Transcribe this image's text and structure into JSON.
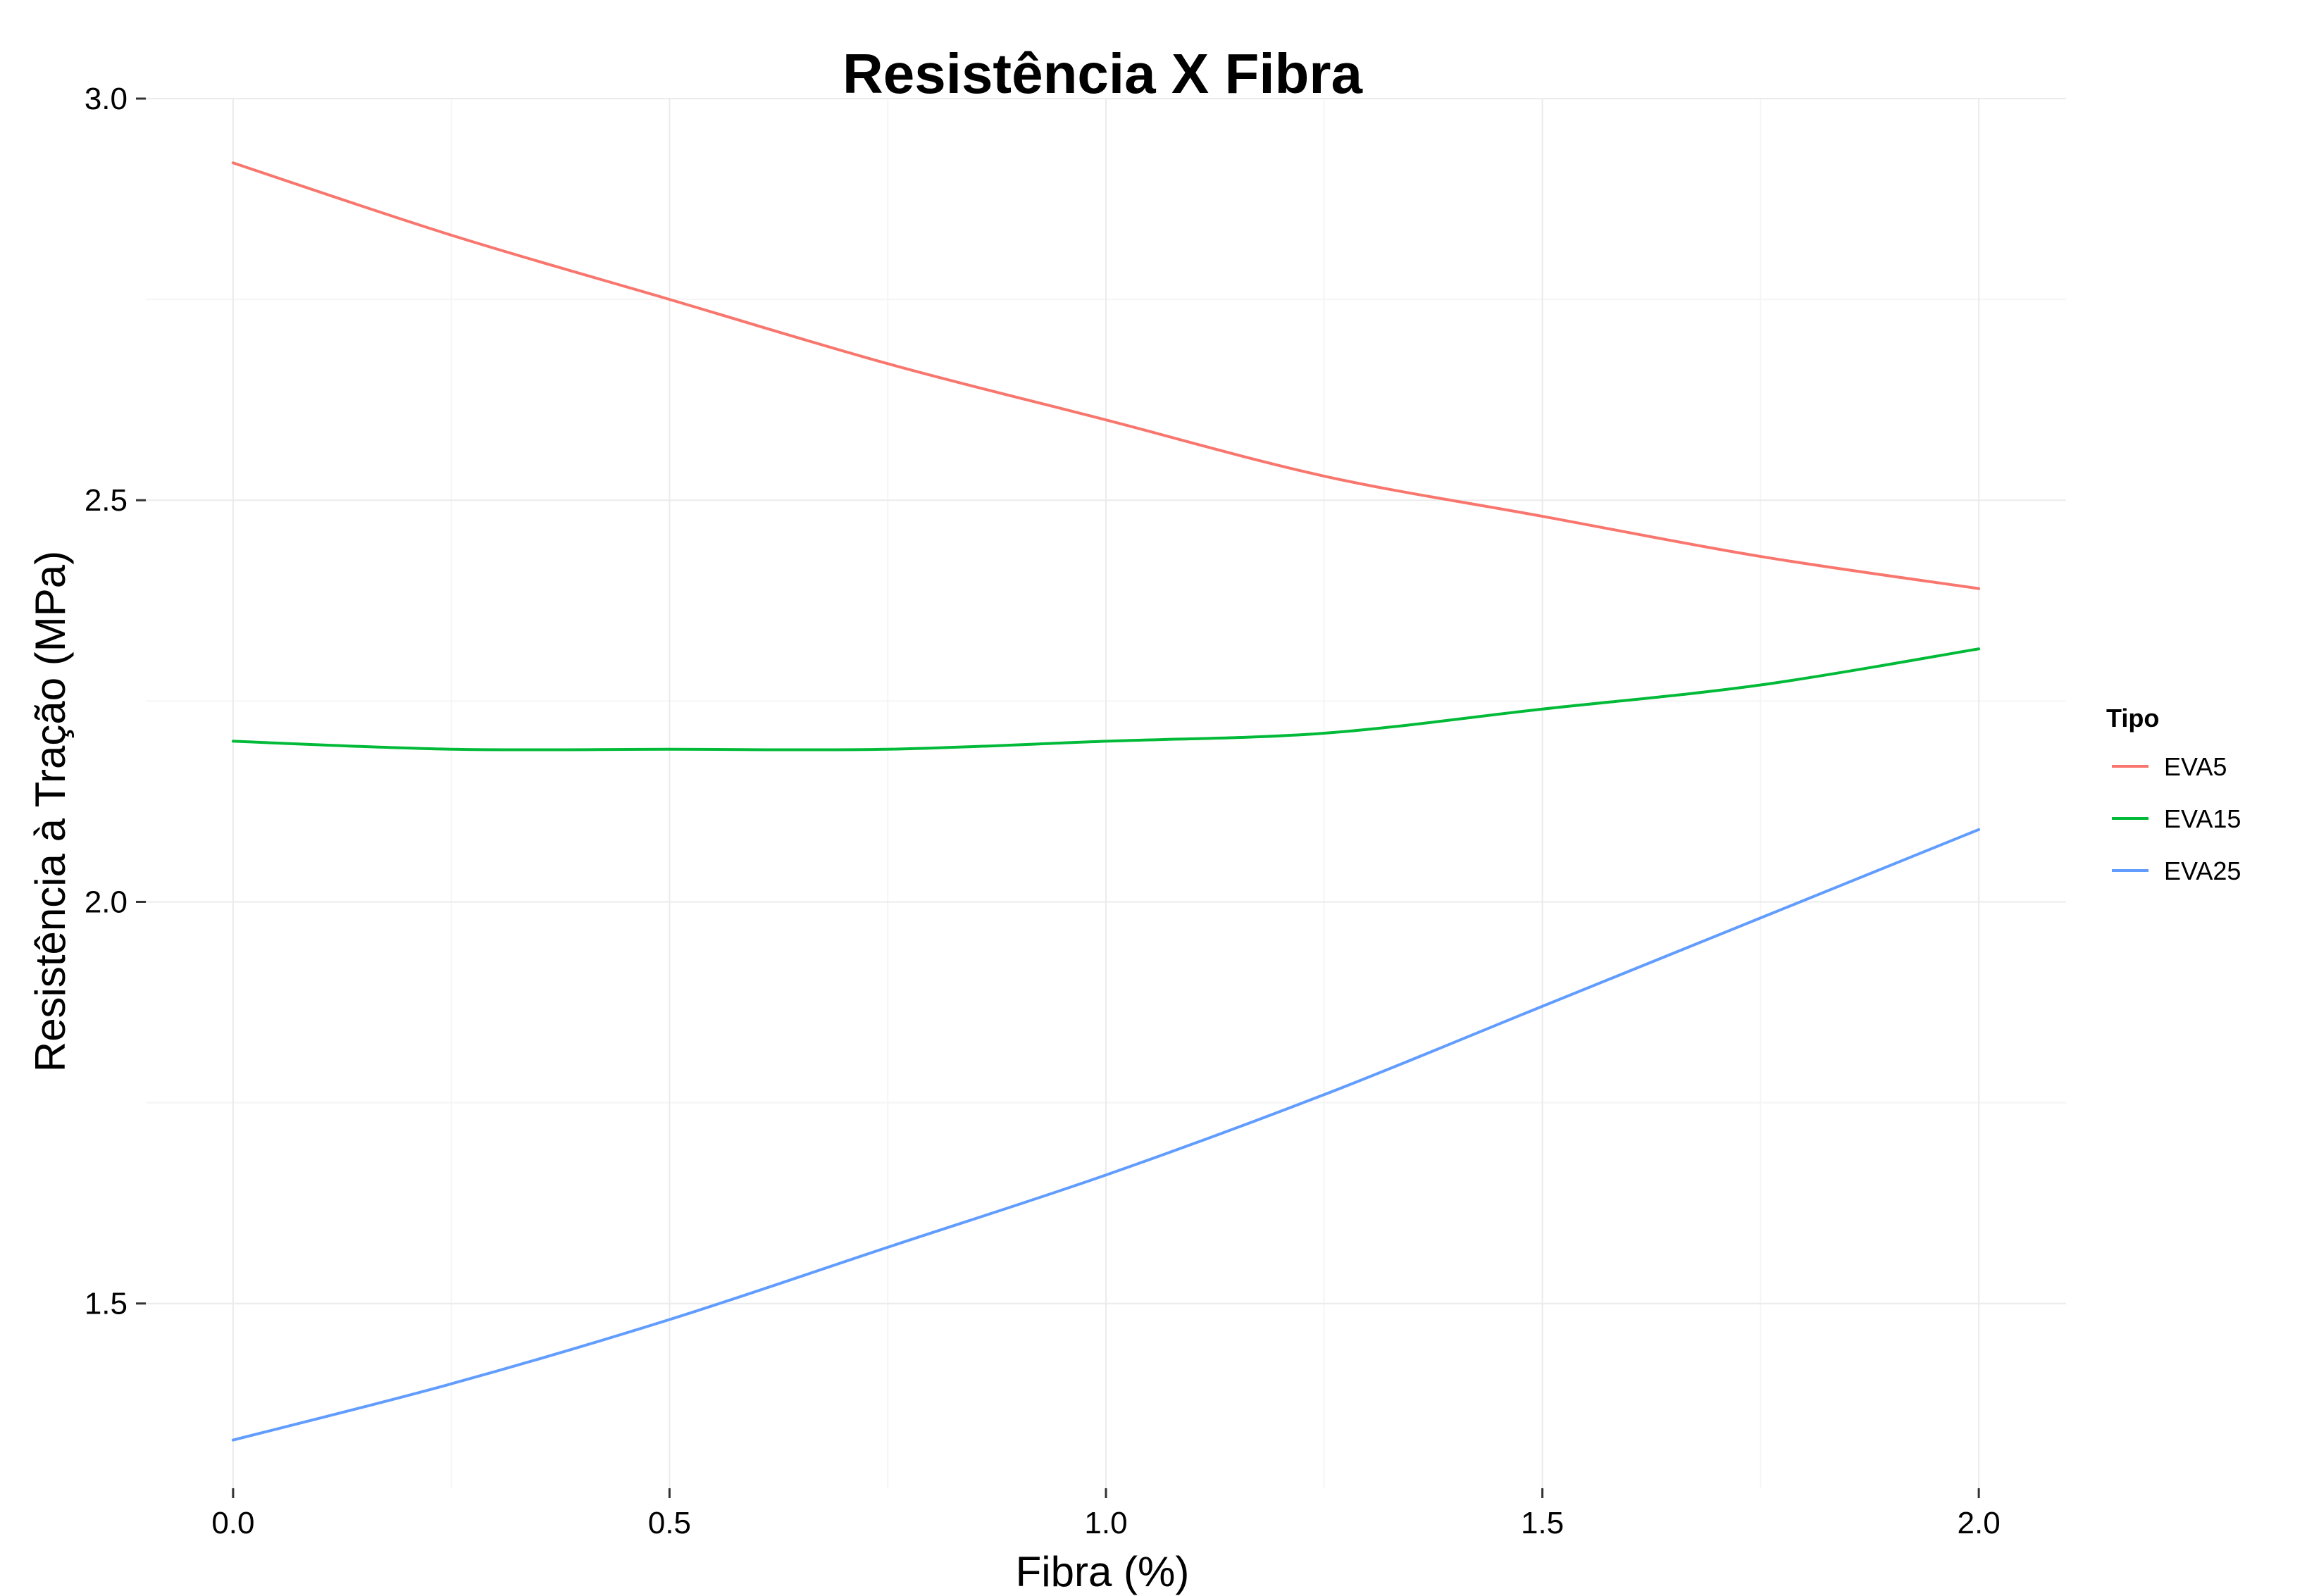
{
  "chart_data": {
    "type": "line",
    "title": "Resistência X Fibra",
    "xlabel": "Fibra (%)",
    "ylabel": "Resistência à Tração (MPa)",
    "xlim": [
      -0.1,
      2.1
    ],
    "ylim": [
      1.27,
      3.0
    ],
    "x_ticks": [
      "0.0",
      "0.5",
      "1.0",
      "1.5",
      "2.0"
    ],
    "y_ticks": [
      "1.5",
      "2.0",
      "2.5",
      "3.0"
    ],
    "grid": true,
    "legend": {
      "title": "Tipo",
      "position": "right"
    },
    "x": [
      0.0,
      0.25,
      0.5,
      0.75,
      1.0,
      1.25,
      1.5,
      1.75,
      2.0
    ],
    "series": [
      {
        "name": "EVA5",
        "color": "#f8766d",
        "values": [
          2.92,
          2.83,
          2.75,
          2.67,
          2.6,
          2.53,
          2.48,
          2.43,
          2.39
        ]
      },
      {
        "name": "EVA15",
        "color": "#00ba38",
        "values": [
          2.2,
          2.19,
          2.19,
          2.19,
          2.2,
          2.21,
          2.24,
          2.27,
          2.315
        ]
      },
      {
        "name": "EVA25",
        "color": "#619cff",
        "values": [
          1.33,
          1.4,
          1.48,
          1.57,
          1.66,
          1.76,
          1.87,
          1.98,
          2.09
        ]
      }
    ]
  }
}
